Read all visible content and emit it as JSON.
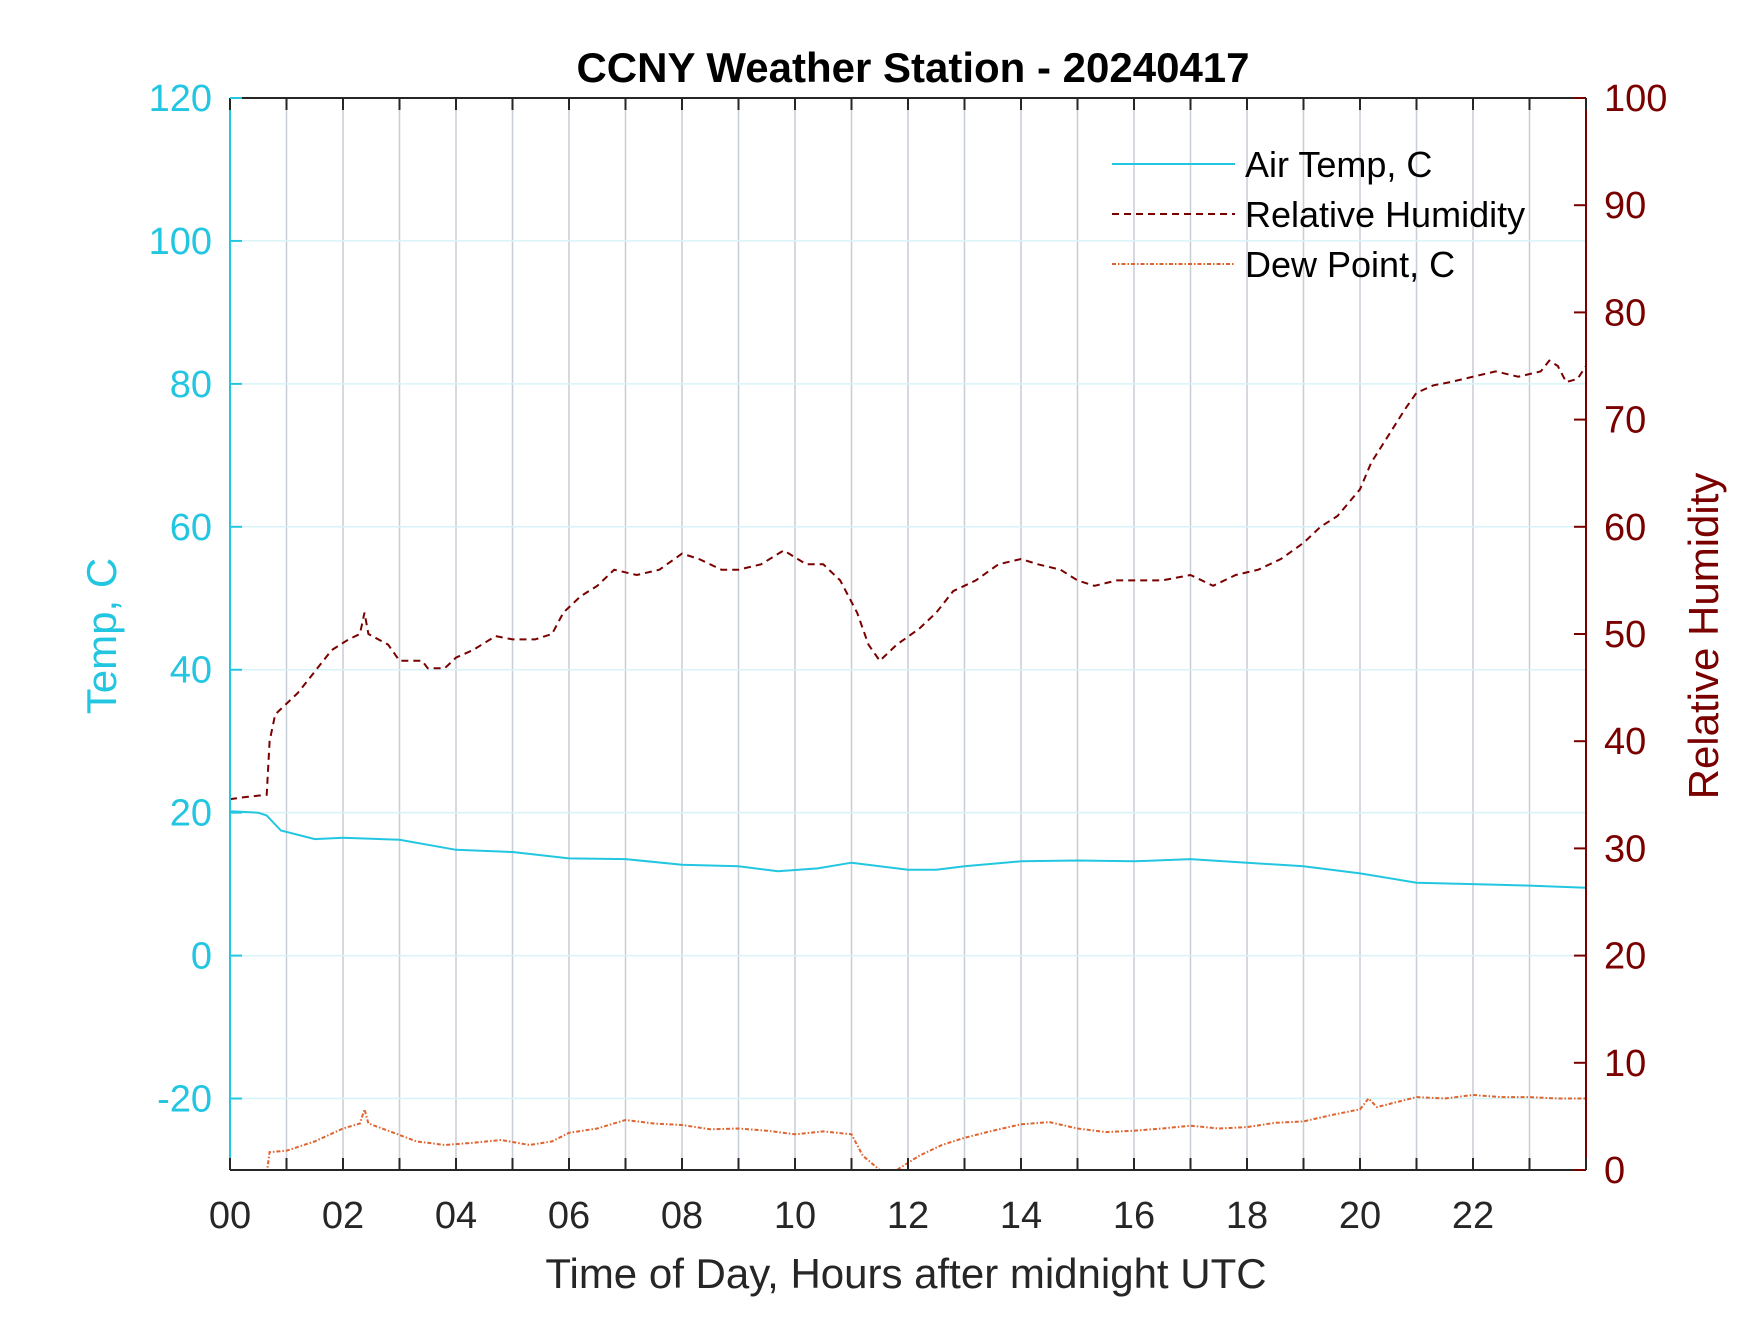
{
  "chart_data": {
    "type": "line",
    "title": "CCNY Weather Station - 20240417",
    "xlabel": "Time of Day, Hours after midnight UTC",
    "ylabel_left": "Temp, C",
    "ylabel_right": "Relative Humidity",
    "xlim": [
      0,
      24
    ],
    "ylim_left": [
      -30,
      120
    ],
    "ylim_right": [
      0,
      100
    ],
    "x_ticks": [
      {
        "value": 0,
        "label": "00"
      },
      {
        "value": 2,
        "label": "02"
      },
      {
        "value": 4,
        "label": "04"
      },
      {
        "value": 6,
        "label": "06"
      },
      {
        "value": 8,
        "label": "08"
      },
      {
        "value": 10,
        "label": "10"
      },
      {
        "value": 12,
        "label": "12"
      },
      {
        "value": 14,
        "label": "14"
      },
      {
        "value": 16,
        "label": "16"
      },
      {
        "value": 18,
        "label": "18"
      },
      {
        "value": 20,
        "label": "20"
      },
      {
        "value": 22,
        "label": "22"
      }
    ],
    "y_ticks_left": [
      -20,
      0,
      20,
      40,
      60,
      80,
      100,
      120
    ],
    "y_ticks_right": [
      0,
      10,
      20,
      30,
      40,
      50,
      60,
      70,
      80,
      90,
      100
    ],
    "grid": true,
    "legend_position": "top-right",
    "colors": {
      "temp": "#22c6e0",
      "humidity": "#7a0000",
      "dewpoint": "#e0632e",
      "grid_vertical": "#c8ced6",
      "grid_horizontal": "#d8f3f8",
      "axis_box": "#262626"
    },
    "series": [
      {
        "name": "Air Temp, C",
        "axis": "left",
        "style": "solid",
        "points": [
          [
            0,
            20.2
          ],
          [
            0.5,
            20
          ],
          [
            0.65,
            19.6
          ],
          [
            0.9,
            17.5
          ],
          [
            1.5,
            16.3
          ],
          [
            2,
            16.5
          ],
          [
            3,
            16.2
          ],
          [
            4,
            14.8
          ],
          [
            5,
            14.5
          ],
          [
            6,
            13.6
          ],
          [
            7,
            13.5
          ],
          [
            8,
            12.7
          ],
          [
            9,
            12.5
          ],
          [
            9.7,
            11.8
          ],
          [
            10.4,
            12.2
          ],
          [
            11,
            13
          ],
          [
            12,
            12
          ],
          [
            12.5,
            12
          ],
          [
            13,
            12.5
          ],
          [
            14,
            13.2
          ],
          [
            15,
            13.3
          ],
          [
            16,
            13.2
          ],
          [
            17,
            13.5
          ],
          [
            18,
            13
          ],
          [
            19,
            12.5
          ],
          [
            20,
            11.5
          ],
          [
            21,
            10.2
          ],
          [
            22,
            10
          ],
          [
            23,
            9.8
          ],
          [
            24,
            9.5
          ]
        ]
      },
      {
        "name": "Relative Humidity",
        "axis": "right",
        "style": "dashed",
        "points": [
          [
            0,
            34.6
          ],
          [
            0.3,
            34.8
          ],
          [
            0.65,
            35
          ],
          [
            0.7,
            40
          ],
          [
            0.8,
            42.5
          ],
          [
            1.2,
            44.5
          ],
          [
            1.5,
            46.5
          ],
          [
            1.8,
            48.5
          ],
          [
            2.1,
            49.5
          ],
          [
            2.3,
            50
          ],
          [
            2.38,
            52
          ],
          [
            2.45,
            50
          ],
          [
            2.8,
            49
          ],
          [
            3.0,
            47.5
          ],
          [
            3.4,
            47.5
          ],
          [
            3.5,
            46.8
          ],
          [
            3.8,
            46.8
          ],
          [
            4.0,
            47.8
          ],
          [
            4.3,
            48.5
          ],
          [
            4.7,
            49.8
          ],
          [
            5.0,
            49.5
          ],
          [
            5.4,
            49.5
          ],
          [
            5.7,
            50
          ],
          [
            5.9,
            52
          ],
          [
            6.2,
            53.5
          ],
          [
            6.5,
            54.5
          ],
          [
            6.8,
            56
          ],
          [
            7.2,
            55.5
          ],
          [
            7.6,
            56
          ],
          [
            8.0,
            57.5
          ],
          [
            8.3,
            57
          ],
          [
            8.7,
            56
          ],
          [
            9.0,
            56
          ],
          [
            9.4,
            56.5
          ],
          [
            9.8,
            57.8
          ],
          [
            10.2,
            56.5
          ],
          [
            10.5,
            56.5
          ],
          [
            10.8,
            55
          ],
          [
            11.1,
            52
          ],
          [
            11.3,
            49
          ],
          [
            11.5,
            47.5
          ],
          [
            11.8,
            49
          ],
          [
            12.2,
            50.5
          ],
          [
            12.5,
            52
          ],
          [
            12.8,
            54
          ],
          [
            13.2,
            55
          ],
          [
            13.6,
            56.5
          ],
          [
            14.0,
            57
          ],
          [
            14.3,
            56.5
          ],
          [
            14.7,
            56
          ],
          [
            15.0,
            55
          ],
          [
            15.3,
            54.5
          ],
          [
            15.7,
            55
          ],
          [
            16.0,
            55
          ],
          [
            16.5,
            55
          ],
          [
            17.0,
            55.5
          ],
          [
            17.4,
            54.5
          ],
          [
            17.8,
            55.5
          ],
          [
            18.2,
            56
          ],
          [
            18.6,
            57
          ],
          [
            19.0,
            58.5
          ],
          [
            19.3,
            60
          ],
          [
            19.6,
            61
          ],
          [
            20.0,
            63.5
          ],
          [
            20.2,
            66
          ],
          [
            20.5,
            68.5
          ],
          [
            20.8,
            71
          ],
          [
            21.0,
            72.5
          ],
          [
            21.3,
            73.2
          ],
          [
            21.6,
            73.5
          ],
          [
            22.0,
            74
          ],
          [
            22.4,
            74.5
          ],
          [
            22.8,
            74
          ],
          [
            23.2,
            74.5
          ],
          [
            23.35,
            75.5
          ],
          [
            23.5,
            75
          ],
          [
            23.65,
            73.5
          ],
          [
            23.85,
            73.8
          ],
          [
            24.0,
            75
          ]
        ]
      },
      {
        "name": "Dew Point, C",
        "axis": "left",
        "style": "dashdot",
        "points": [
          [
            0.65,
            -30.5
          ],
          [
            0.7,
            -27.5
          ],
          [
            1.0,
            -27.3
          ],
          [
            1.5,
            -26
          ],
          [
            2.0,
            -24.2
          ],
          [
            2.3,
            -23.5
          ],
          [
            2.38,
            -21.5
          ],
          [
            2.45,
            -23.5
          ],
          [
            2.8,
            -24.5
          ],
          [
            3.3,
            -26
          ],
          [
            3.8,
            -26.5
          ],
          [
            4.3,
            -26.2
          ],
          [
            4.8,
            -25.8
          ],
          [
            5.3,
            -26.5
          ],
          [
            5.7,
            -26
          ],
          [
            6.0,
            -24.8
          ],
          [
            6.5,
            -24.2
          ],
          [
            7.0,
            -23
          ],
          [
            7.5,
            -23.5
          ],
          [
            8.0,
            -23.7
          ],
          [
            8.5,
            -24.3
          ],
          [
            9.0,
            -24.2
          ],
          [
            9.5,
            -24.5
          ],
          [
            10.0,
            -25
          ],
          [
            10.5,
            -24.6
          ],
          [
            11.0,
            -25
          ],
          [
            11.2,
            -28
          ],
          [
            11.5,
            -30
          ],
          [
            11.8,
            -30
          ],
          [
            12.2,
            -28
          ],
          [
            12.6,
            -26.5
          ],
          [
            13.0,
            -25.5
          ],
          [
            13.5,
            -24.5
          ],
          [
            14.0,
            -23.6
          ],
          [
            14.5,
            -23.3
          ],
          [
            15.0,
            -24.2
          ],
          [
            15.5,
            -24.7
          ],
          [
            16.0,
            -24.5
          ],
          [
            16.5,
            -24.2
          ],
          [
            17.0,
            -23.8
          ],
          [
            17.5,
            -24.2
          ],
          [
            18.0,
            -24
          ],
          [
            18.5,
            -23.4
          ],
          [
            19.0,
            -23.2
          ],
          [
            19.5,
            -22.3
          ],
          [
            20.0,
            -21.5
          ],
          [
            20.15,
            -20
          ],
          [
            20.3,
            -21.2
          ],
          [
            20.6,
            -20.6
          ],
          [
            21.0,
            -19.8
          ],
          [
            21.5,
            -20
          ],
          [
            22.0,
            -19.5
          ],
          [
            22.5,
            -19.8
          ],
          [
            23.0,
            -19.8
          ],
          [
            23.5,
            -20
          ],
          [
            24.0,
            -20
          ]
        ]
      }
    ]
  }
}
